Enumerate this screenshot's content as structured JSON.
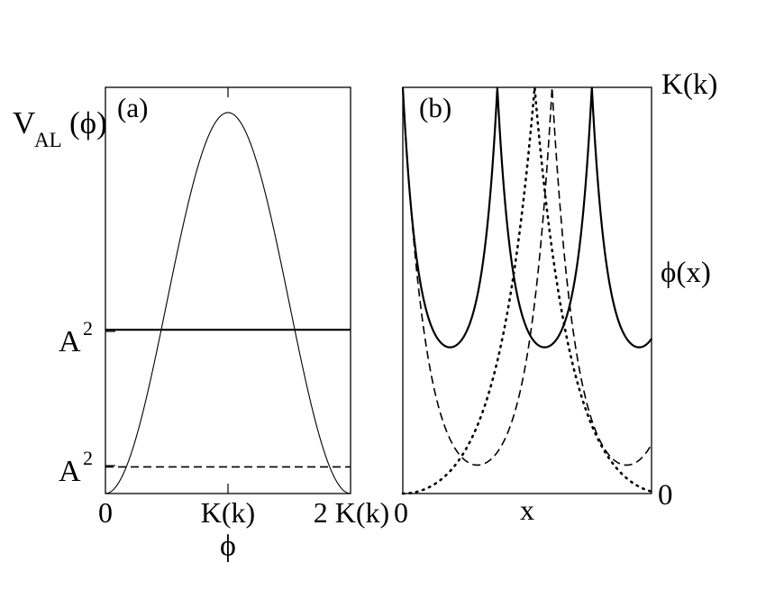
{
  "chart_data": [
    {
      "type": "line",
      "panel_label": "(a)",
      "ylabel_main": "V",
      "ylabel_sub": "AL",
      "ylabel_arg": "(ϕ)",
      "xlabel": "ϕ",
      "xtick_labels": [
        "0",
        "K(k)",
        "2 K(k)"
      ],
      "ytick_labels": [
        "A",
        "A"
      ],
      "ytick_superscripts": [
        "2",
        "2"
      ],
      "xlim": [
        0,
        2
      ],
      "ylim": [
        0,
        1
      ],
      "series": [
        {
          "style": "thin-solid",
          "x": [
            0,
            0.25,
            0.5,
            0.75,
            1.0,
            1.25,
            1.5,
            1.75,
            2.0
          ],
          "y": [
            0,
            0.14,
            0.5,
            0.86,
            1.0,
            0.86,
            0.5,
            0.14,
            0
          ]
        },
        {
          "style": "thick-solid",
          "x": [
            0,
            2
          ],
          "y": [
            0.43,
            0.43
          ]
        },
        {
          "style": "dashed",
          "x": [
            0,
            2
          ],
          "y": [
            0.07,
            0.07
          ]
        }
      ]
    },
    {
      "type": "line",
      "panel_label": "(b)",
      "xlabel": "x",
      "xtick_labels": [
        "0"
      ],
      "right_labels": [
        "K(k)",
        "ϕ(x)",
        "0"
      ],
      "xlim": [
        0,
        1
      ],
      "ylim": [
        0,
        1
      ],
      "series": [
        {
          "style": "solid",
          "x": [
            0,
            0.2,
            0.38,
            0.57,
            0.76,
            0.95,
            1.0
          ],
          "y": [
            1.0,
            0.36,
            1.0,
            0.36,
            1.0,
            0.36,
            0.39
          ]
        },
        {
          "style": "dashed",
          "x": [
            0,
            0.3,
            0.6,
            0.9,
            1.0
          ],
          "y": [
            1.0,
            0.07,
            1.0,
            0.07,
            0.12
          ]
        },
        {
          "style": "dotted",
          "x": [
            0,
            0.53,
            1.0
          ],
          "y": [
            0.0,
            1.0,
            0.0
          ]
        }
      ]
    }
  ]
}
